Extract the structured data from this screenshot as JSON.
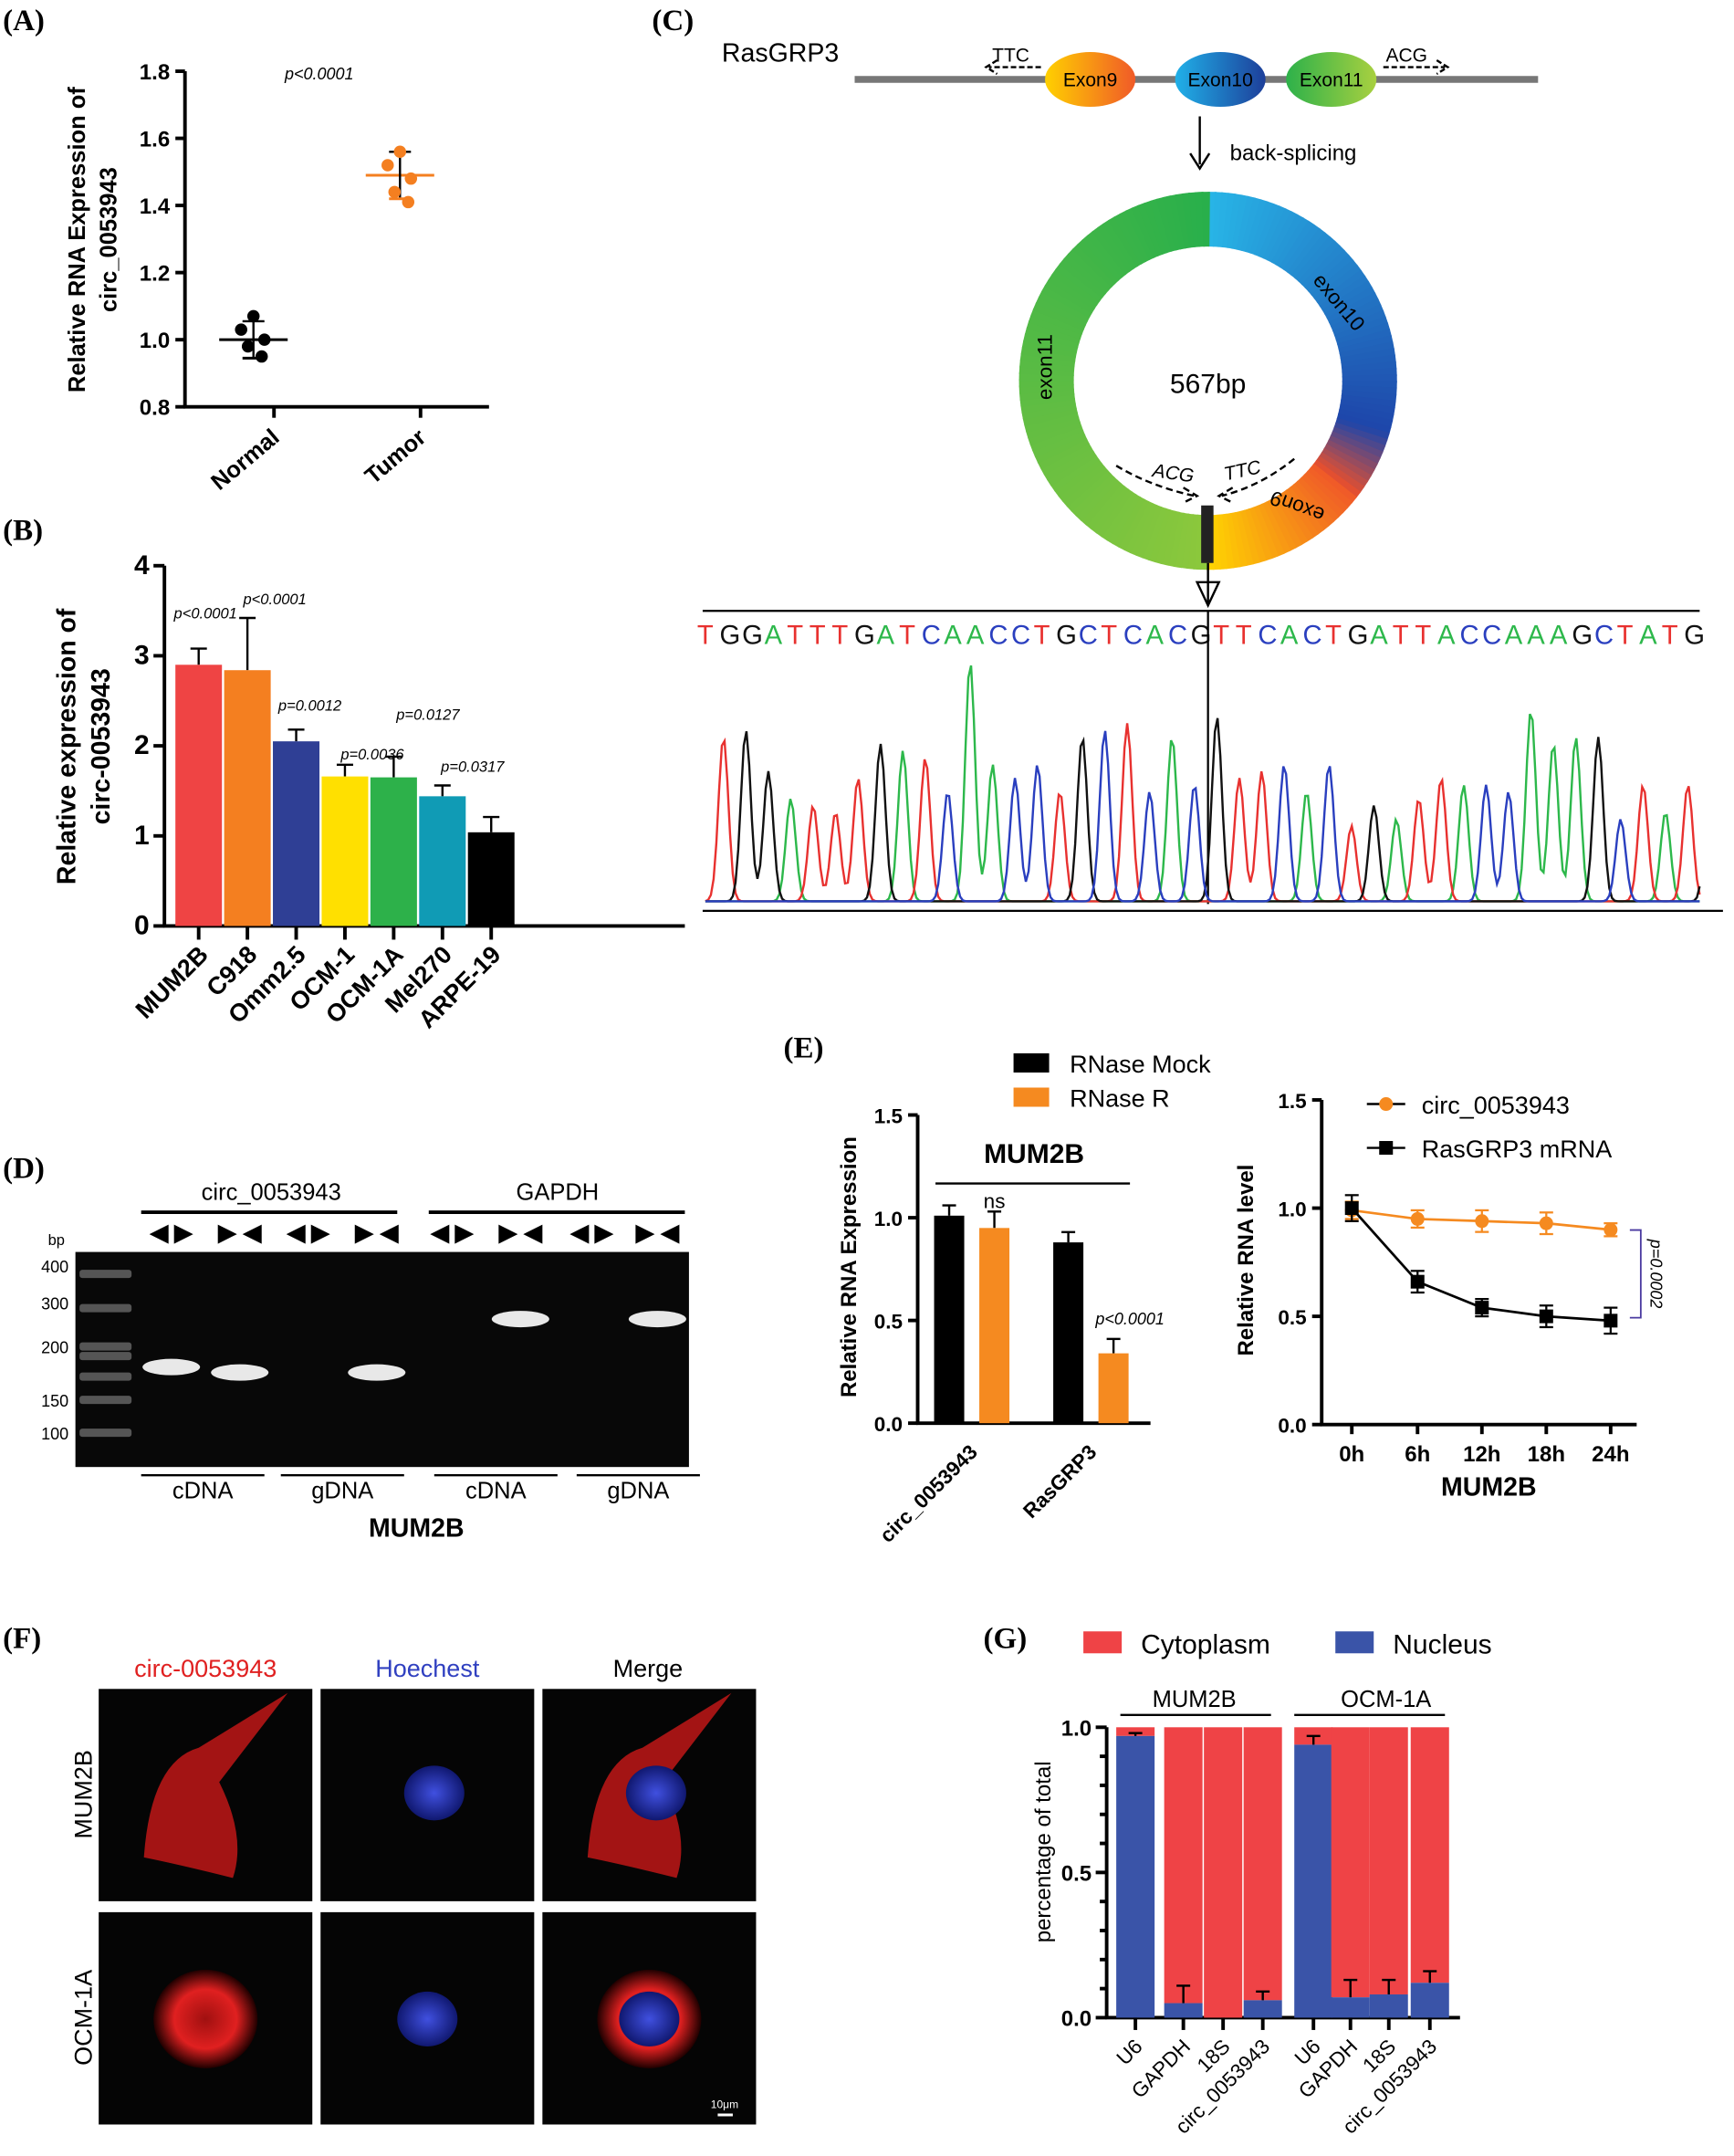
{
  "panels": {
    "A": {
      "label": "(A)",
      "ylabel1": "Relative RNA Expression of",
      "ylabel2": "circ_0053943",
      "pvalue": "p<0.0001"
    },
    "B": {
      "label": "(B)",
      "ylabel1": "Relative expression of",
      "ylabel2": "circ-0053943"
    },
    "C": {
      "label": "(C)",
      "gene": "RasGRP3",
      "exons": [
        "Exon9",
        "Exon10",
        "Exon11"
      ],
      "primer_left": "TTC",
      "primer_right": "ACG",
      "arrow_label": "back-splicing",
      "ring_labels": [
        "exon10",
        "exon9",
        "exon11"
      ],
      "ring_size": "567bp",
      "ring_primer_left": "ACG",
      "ring_primer_right": "TTC",
      "sequence": "TGGATTTGATCAACCTGCTCACGTTCACTGATTACCAAAGCTATG"
    },
    "D": {
      "label": "(D)",
      "group1": "circ_0053943",
      "group2": "GAPDH",
      "bp": "bp",
      "ladder": [
        "400",
        "300",
        "200",
        "150",
        "100"
      ],
      "lanes": [
        "cDNA",
        "gDNA",
        "cDNA",
        "gDNA"
      ],
      "cell": "MUM2B"
    },
    "E": {
      "label": "(E)",
      "legend": [
        "RNase Mock",
        "RNase R"
      ],
      "left_title": "MUM2B",
      "left_ylabel": "Relative RNA Expression",
      "ns": "ns",
      "left_p": "p<0.0001",
      "right_legend": [
        "circ_0053943",
        "RasGRP3 mRNA"
      ],
      "right_ylabel": "Relative RNA level",
      "right_xlabel": "MUM2B",
      "right_p": "p=0.0002"
    },
    "F": {
      "label": "(F)",
      "columns": [
        "circ-0053943",
        "Hoechest",
        "Merge"
      ],
      "rows": [
        "MUM2B",
        "OCM-1A"
      ],
      "scale": "10μm"
    },
    "G": {
      "label": "(G)",
      "legend": [
        "Cytoplasm",
        "Nucleus"
      ],
      "groups": [
        "MUM2B",
        "OCM-1A"
      ],
      "ylabel": "percentage of total"
    }
  },
  "colors": {
    "red": "#ef4444",
    "orange": "#f47f20",
    "blue": "#2f3f95",
    "yellow": "#ffe000",
    "green": "#2db14a",
    "teal": "#109bb5",
    "nucleus": "#3a54a8",
    "cyto": "#ef4346"
  },
  "chart_data": [
    {
      "panel": "A",
      "type": "scatter",
      "categories": [
        "Normal",
        "Tumor"
      ],
      "ylim": [
        0.8,
        1.8
      ],
      "yticks": [
        "0.8",
        "1.0",
        "1.2",
        "1.4",
        "1.6",
        "1.8"
      ],
      "points": [
        [
          1.07,
          1.03,
          1.0,
          0.98,
          0.95
        ],
        [
          1.56,
          1.52,
          1.48,
          1.44,
          1.41
        ]
      ],
      "means": [
        1.0,
        1.49
      ],
      "sd": [
        0.055,
        0.07
      ]
    },
    {
      "panel": "B",
      "type": "bar",
      "categories": [
        "MUM2B",
        "C918",
        "Omm2.5",
        "OCM-1",
        "OCM-1A",
        "Mel270",
        "ARPE-19"
      ],
      "ylim": [
        0,
        4
      ],
      "yticks": [
        "0",
        "1",
        "2",
        "3",
        "4"
      ],
      "values": [
        2.9,
        2.84,
        2.05,
        1.66,
        1.65,
        1.44,
        1.04
      ],
      "errors": [
        0.18,
        0.58,
        0.13,
        0.13,
        0.23,
        0.12,
        0.17
      ],
      "annotations": [
        "p<0.0001",
        "p<0.0001",
        "p=0.0012",
        "p=0.0036",
        "p=0.0127",
        "p=0.0317",
        ""
      ]
    },
    {
      "panel": "E-left",
      "type": "bar",
      "categories": [
        "circ_0053943",
        "RasGRP3"
      ],
      "ylim": [
        0,
        1.5
      ],
      "yticks": [
        "0.0",
        "0.5",
        "1.0",
        "1.5"
      ],
      "series": [
        {
          "name": "RNase Mock",
          "values": [
            1.01,
            0.88
          ],
          "errors": [
            0.05,
            0.05
          ]
        },
        {
          "name": "RNase R",
          "values": [
            0.95,
            0.34
          ],
          "errors": [
            0.08,
            0.07
          ]
        }
      ]
    },
    {
      "panel": "E-right",
      "type": "line",
      "x": [
        "0h",
        "6h",
        "12h",
        "18h",
        "24h"
      ],
      "ylim": [
        0,
        1.5
      ],
      "yticks": [
        "0.0",
        "0.5",
        "1.0",
        "1.5"
      ],
      "series": [
        {
          "name": "circ_0053943",
          "values": [
            0.99,
            0.95,
            0.94,
            0.93,
            0.9
          ],
          "errors": [
            0.04,
            0.04,
            0.05,
            0.05,
            0.03
          ]
        },
        {
          "name": "RasGRP3 mRNA",
          "values": [
            1.0,
            0.66,
            0.54,
            0.5,
            0.48
          ],
          "errors": [
            0.06,
            0.05,
            0.04,
            0.05,
            0.06
          ]
        }
      ]
    },
    {
      "panel": "G",
      "type": "bar",
      "stacked": true,
      "categories": [
        "U6",
        "GAPDH",
        "18S",
        "circ_0053943",
        "U6",
        "GAPDH",
        "18S",
        "circ_0053943"
      ],
      "ylim": [
        0,
        1.0
      ],
      "yticks": [
        "0.0",
        "0.5",
        "1.0"
      ],
      "series": [
        {
          "name": "Nucleus",
          "values": [
            0.97,
            0.05,
            0.0,
            0.06,
            0.94,
            0.07,
            0.08,
            0.12
          ],
          "errors": [
            0.01,
            0.06,
            0.0,
            0.03,
            0.03,
            0.06,
            0.05,
            0.04
          ]
        },
        {
          "name": "Cytoplasm",
          "values": [
            0.03,
            0.95,
            1.0,
            0.94,
            0.06,
            0.93,
            0.92,
            0.88
          ]
        }
      ]
    }
  ]
}
